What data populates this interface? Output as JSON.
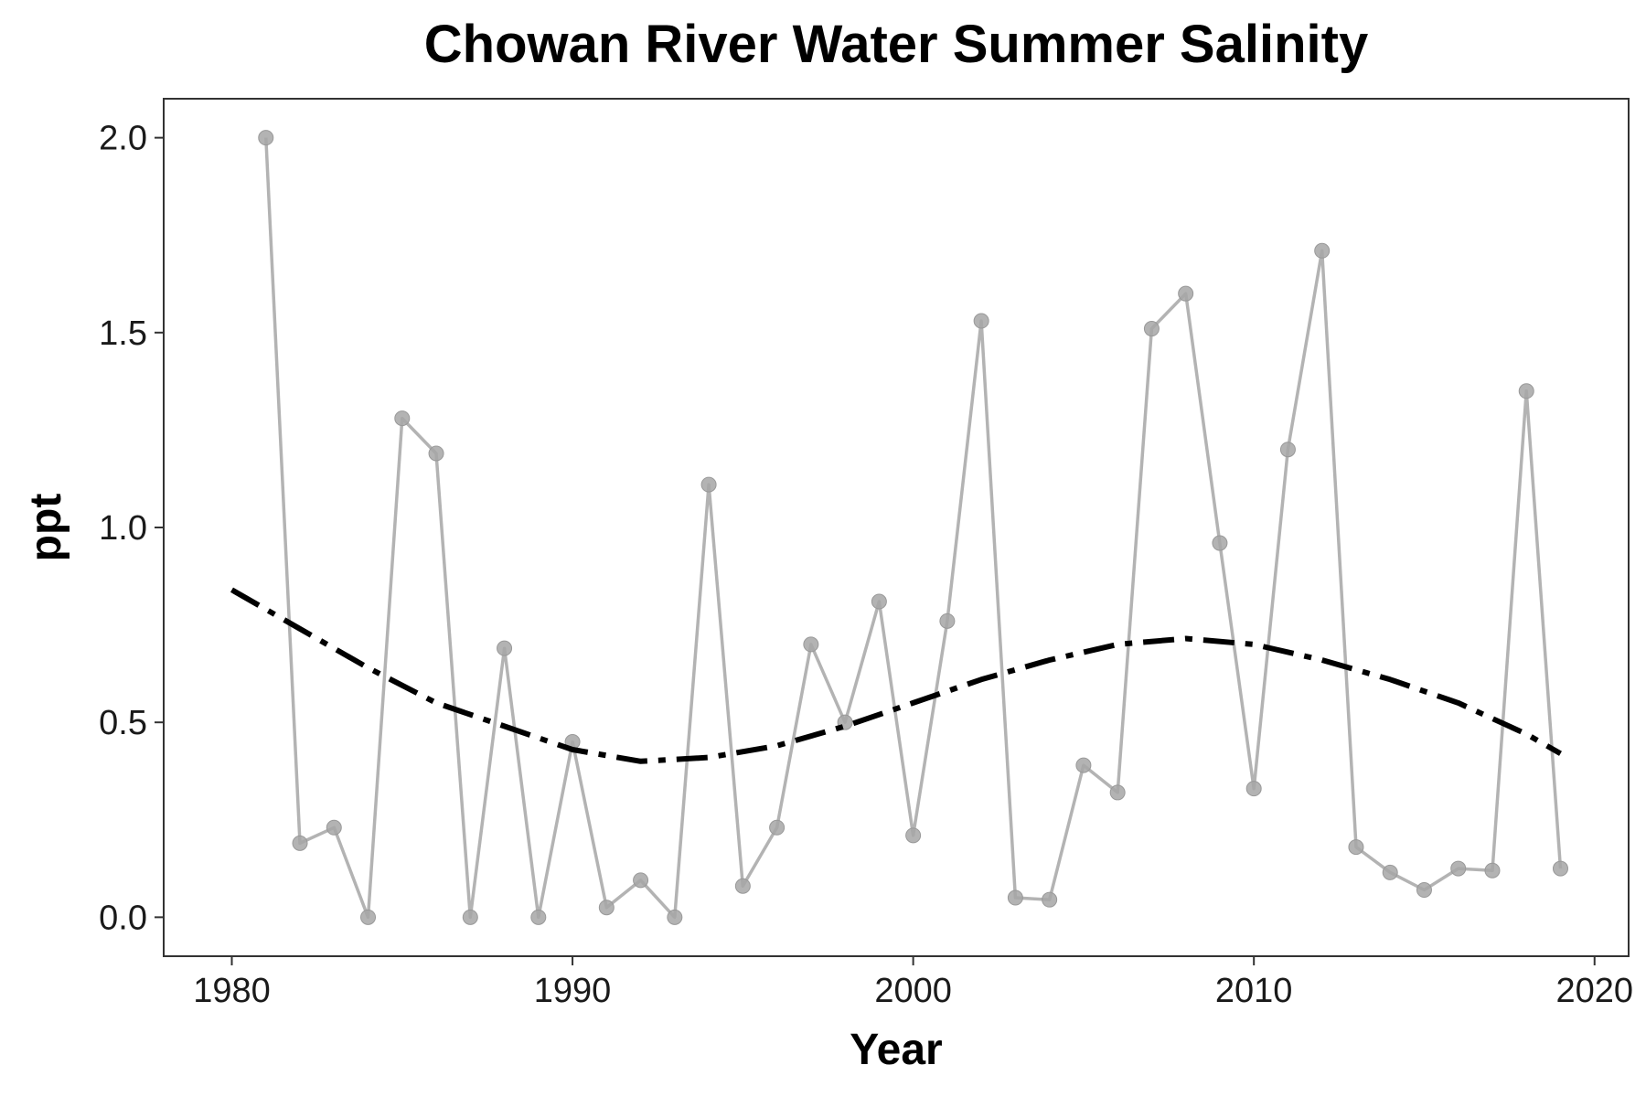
{
  "chart_data": {
    "type": "line",
    "title": "Chowan River Water Summer Salinity",
    "xlabel": "Year",
    "ylabel": "ppt",
    "xlim": [
      1978,
      2021
    ],
    "ylim": [
      -0.1,
      2.1
    ],
    "x_ticks": [
      1980,
      1990,
      2000,
      2010,
      2020
    ],
    "y_ticks": [
      0.0,
      0.5,
      1.0,
      1.5,
      2.0
    ],
    "y_tick_labels": [
      "0.0",
      "0.5",
      "1.0",
      "1.5",
      "2.0"
    ],
    "grid": false,
    "legend": "none",
    "series": [
      {
        "kind": "line+points",
        "color": "#b3b3b3",
        "x": [
          1981,
          1982,
          1983,
          1984,
          1985,
          1986,
          1987,
          1988,
          1989,
          1990,
          1991,
          1992,
          1993,
          1994,
          1995,
          1996,
          1997,
          1998,
          1999,
          2000,
          2001,
          2002,
          2003,
          2004,
          2005,
          2006,
          2007,
          2008,
          2009,
          2010,
          2011,
          2012,
          2013,
          2014,
          2015,
          2016,
          2017,
          2018,
          2019
        ],
        "values": [
          2.0,
          0.19,
          0.23,
          0.0,
          1.28,
          1.19,
          0.0,
          0.69,
          0.0,
          0.45,
          0.025,
          0.095,
          0.0,
          1.11,
          0.08,
          0.23,
          0.7,
          0.5,
          0.81,
          0.21,
          0.76,
          1.53,
          0.05,
          0.045,
          0.39,
          0.32,
          1.51,
          1.6,
          0.96,
          0.33,
          1.2,
          1.71,
          0.18,
          0.115,
          0.07,
          0.125,
          0.12,
          1.35,
          0.125
        ]
      },
      {
        "kind": "trend",
        "color": "#000000",
        "dash": "dot-dash",
        "x": [
          1980,
          1982,
          1984,
          1986,
          1988,
          1990,
          1992,
          1994,
          1996,
          1998,
          2000,
          2002,
          2004,
          2006,
          2008,
          2010,
          2012,
          2014,
          2016,
          2018,
          2019
        ],
        "values": [
          0.84,
          0.74,
          0.64,
          0.55,
          0.49,
          0.43,
          0.4,
          0.41,
          0.44,
          0.49,
          0.55,
          0.61,
          0.66,
          0.7,
          0.715,
          0.7,
          0.66,
          0.61,
          0.55,
          0.47,
          0.42
        ]
      }
    ]
  }
}
